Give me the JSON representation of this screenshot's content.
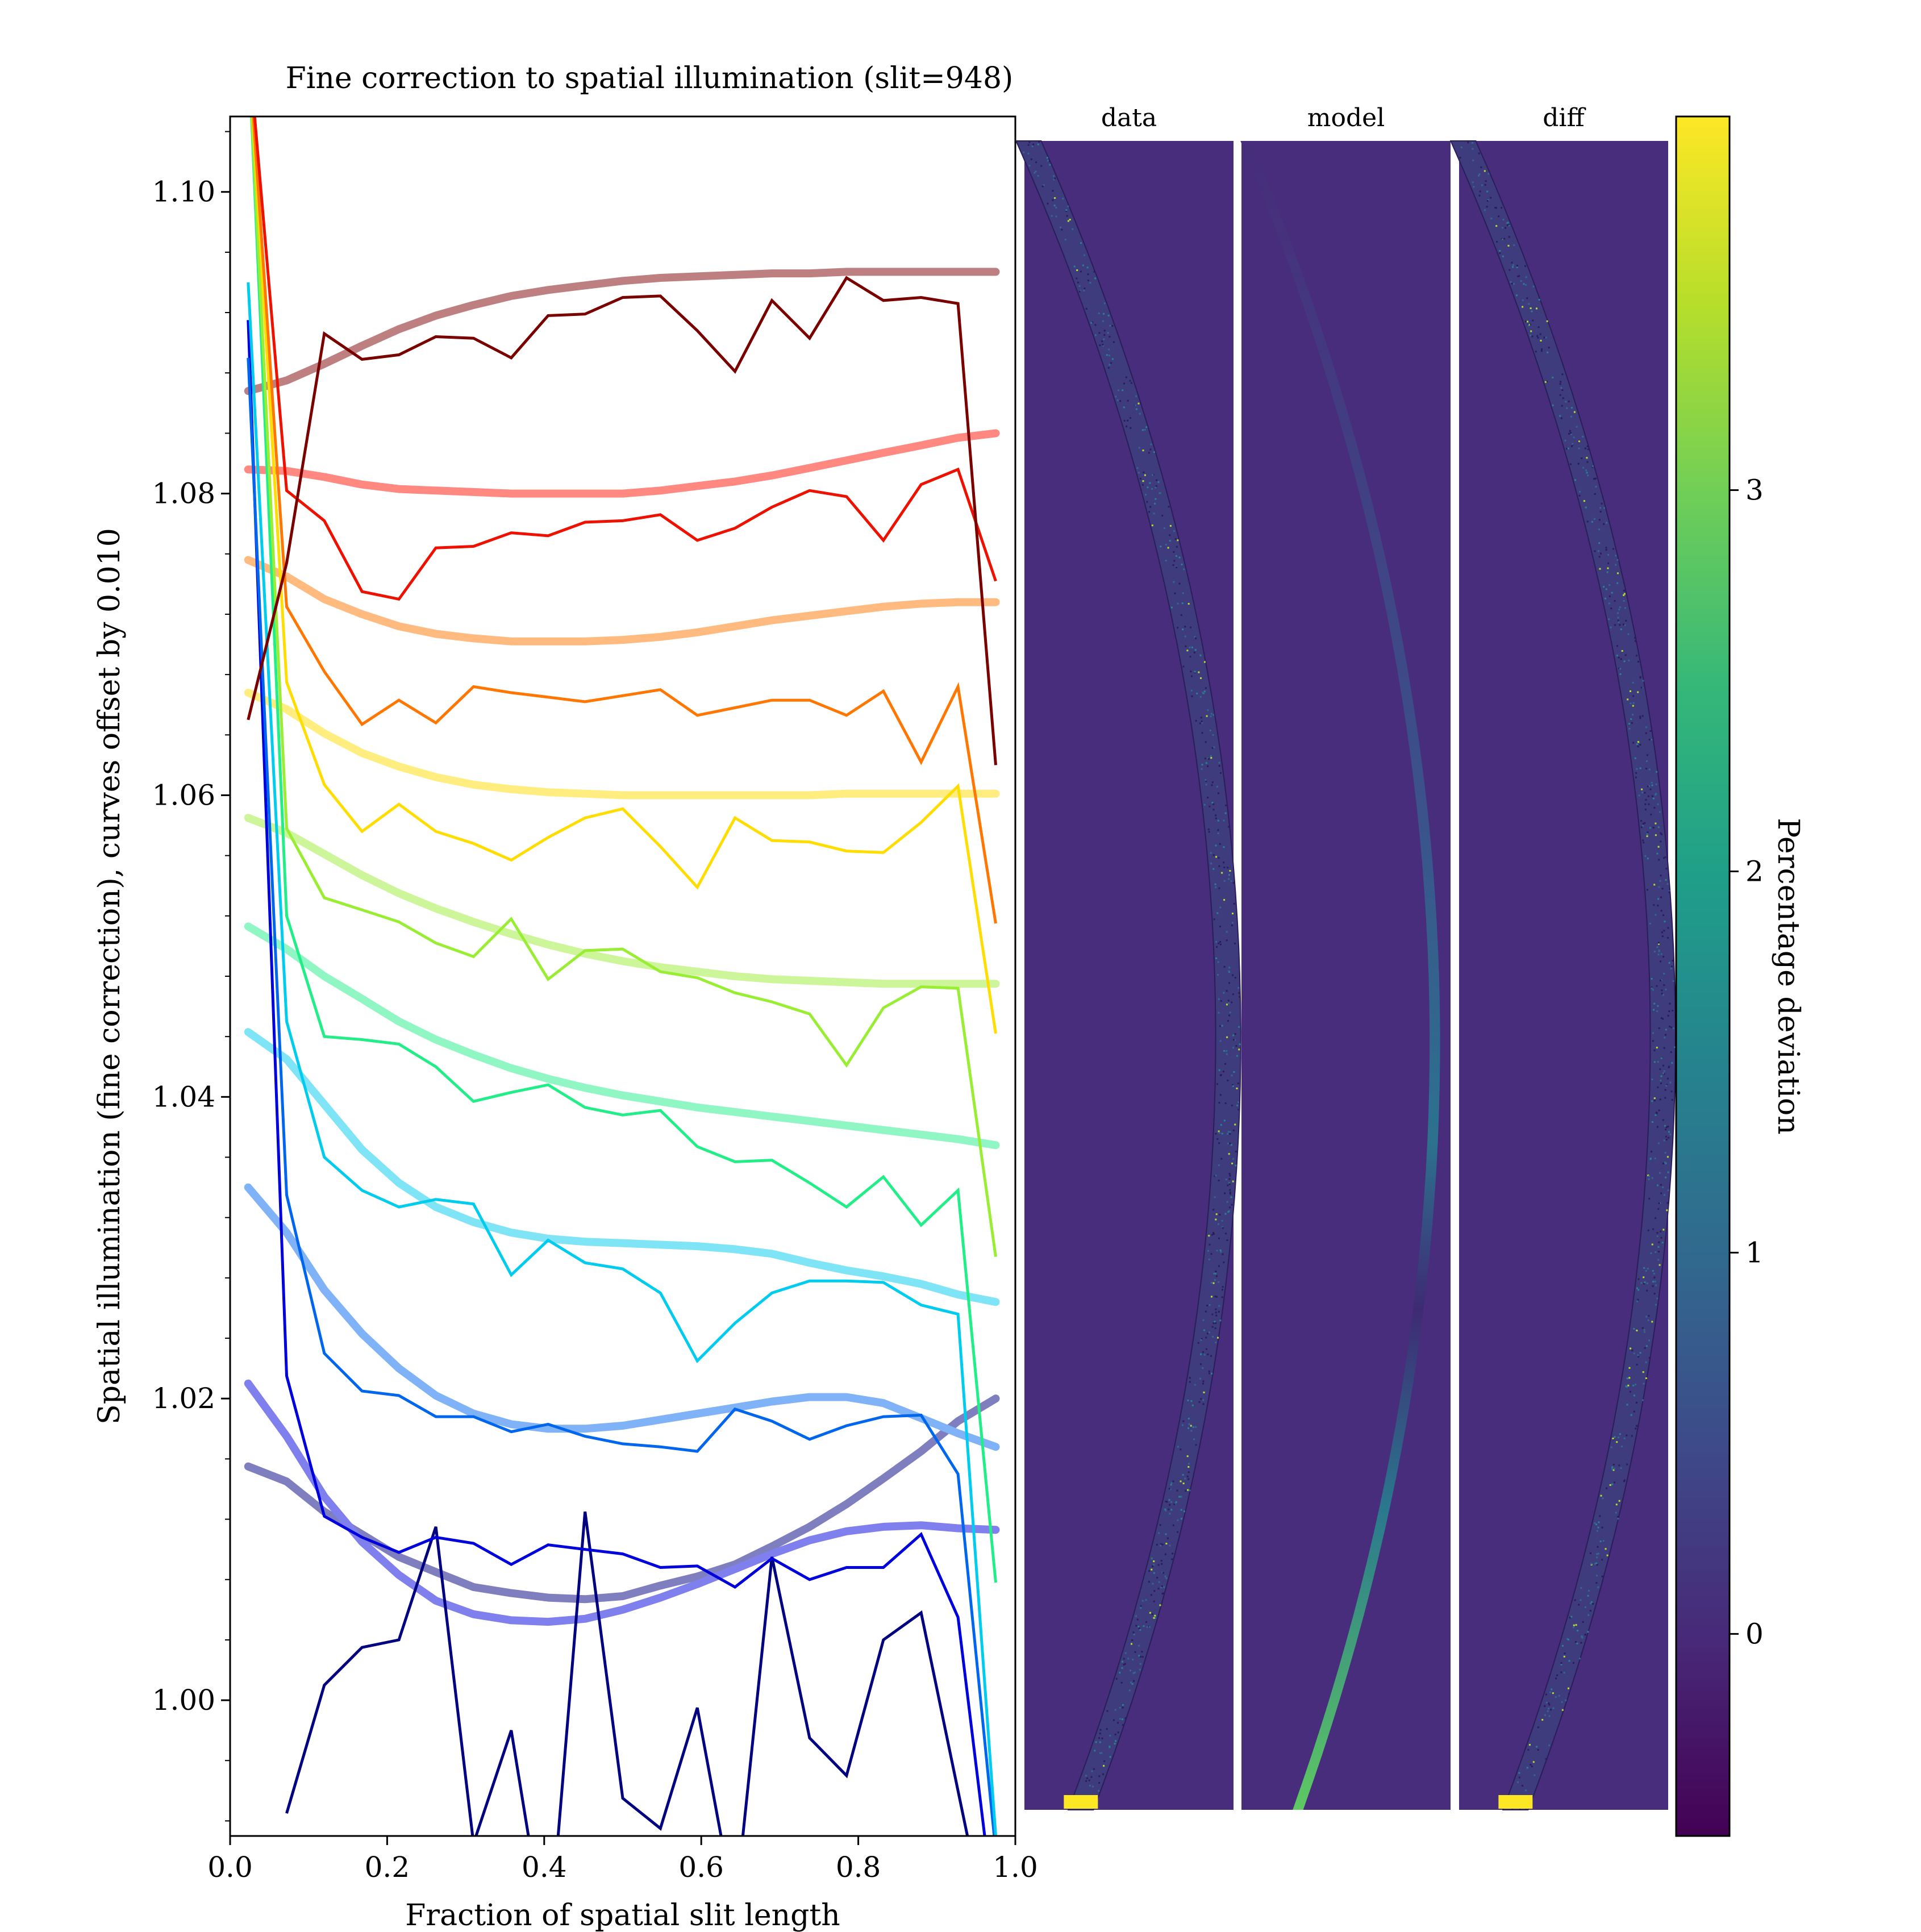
{
  "chart_data": [
    {
      "type": "line",
      "title": "Fine correction to spatial illumination (slit=948)",
      "xlabel": "Fraction of spatial slit length",
      "ylabel": "Spatial illumination (fine correction), curves offset by 0.010",
      "xlim": [
        0.0,
        1.0
      ],
      "ylim": [
        0.991,
        1.105
      ],
      "xticks": [
        "0.0",
        "0.2",
        "0.4",
        "0.6",
        "0.8",
        "1.0"
      ],
      "yticks": [
        "1.00",
        "1.02",
        "1.04",
        "1.06",
        "1.08",
        "1.10"
      ],
      "grid": false,
      "x": [
        0.023,
        0.072,
        0.12,
        0.168,
        0.215,
        0.262,
        0.31,
        0.358,
        0.405,
        0.452,
        0.5,
        0.548,
        0.595,
        0.643,
        0.69,
        0.738,
        0.785,
        0.832,
        0.88,
        0.927,
        0.975
      ],
      "series": [
        {
          "color": "#000080",
          "values": [
            null,
            0.9925,
            1.001,
            1.0035,
            1.004,
            1.0115,
            0.9905,
            0.998,
            0.983,
            1.0125,
            0.9935,
            0.9915,
            0.9995,
            0.986,
            1.0095,
            0.9975,
            0.995,
            1.004,
            1.0058,
            0.994,
            0.982
          ],
          "model": [
            1.0155,
            1.0145,
            1.0125,
            1.011,
            1.0095,
            1.0085,
            1.0075,
            1.0071,
            1.0068,
            1.0067,
            1.0069,
            1.0076,
            1.0082,
            1.009,
            1.0102,
            1.0115,
            1.013,
            1.0147,
            1.0165,
            1.0185,
            1.02
          ],
          "model_color": "#7f7fbf"
        },
        {
          "color": "#0000dd",
          "values": [
            1.0915,
            1.0215,
            1.0122,
            1.0108,
            1.0098,
            1.0108,
            1.0104,
            1.009,
            1.0103,
            1.01,
            1.0097,
            1.0088,
            1.0089,
            1.0075,
            1.0094,
            1.008,
            1.0088,
            1.0088,
            1.011,
            1.0055,
            0.985
          ],
          "model": [
            1.021,
            1.0175,
            1.0135,
            1.0105,
            1.0083,
            1.0066,
            1.0057,
            1.0053,
            1.0052,
            1.0054,
            1.006,
            1.0068,
            1.0077,
            1.0087,
            1.0097,
            1.0106,
            1.0112,
            1.0115,
            1.0116,
            1.0114,
            1.0113
          ],
          "model_color": "#7f7fee"
        },
        {
          "color": "#0066ee",
          "values": [
            1.089,
            1.0335,
            1.023,
            1.0205,
            1.0202,
            1.0188,
            1.0188,
            1.0178,
            1.0183,
            1.0175,
            1.017,
            1.0168,
            1.0165,
            1.0193,
            1.0185,
            1.0173,
            1.0182,
            1.0188,
            1.0189,
            1.015,
            0.99
          ],
          "model": [
            1.034,
            1.031,
            1.0272,
            1.0243,
            1.022,
            1.0202,
            1.019,
            1.0183,
            1.018,
            1.018,
            1.0182,
            1.0186,
            1.019,
            1.0194,
            1.0198,
            1.0201,
            1.0201,
            1.0197,
            1.0187,
            1.0177,
            1.0168
          ],
          "model_color": "#7fb2f6"
        },
        {
          "color": "#00ccee",
          "values": [
            1.094,
            1.045,
            1.036,
            1.0338,
            1.0327,
            1.0332,
            1.0329,
            1.0282,
            1.0305,
            1.029,
            1.0286,
            1.027,
            1.0225,
            1.025,
            1.027,
            1.0278,
            1.0278,
            1.0277,
            1.0262,
            1.0256,
            0.991
          ],
          "model": [
            1.0443,
            1.0425,
            1.0395,
            1.0365,
            1.0343,
            1.0327,
            1.0317,
            1.031,
            1.0306,
            1.0304,
            1.0303,
            1.0302,
            1.0301,
            1.0299,
            1.0296,
            1.029,
            1.0285,
            1.0281,
            1.0276,
            1.0269,
            1.0264
          ],
          "model_color": "#7fe5f6"
        },
        {
          "color": "#22ee88",
          "values": [
            1.11,
            1.052,
            1.044,
            1.0438,
            1.0435,
            1.042,
            1.0397,
            1.0403,
            1.0408,
            1.0393,
            1.0388,
            1.0391,
            1.0367,
            1.0357,
            1.0358,
            1.0343,
            1.0327,
            1.0347,
            1.0315,
            1.0338,
            1.0078
          ],
          "model": [
            1.0513,
            1.0498,
            1.048,
            1.0465,
            1.045,
            1.0438,
            1.0428,
            1.0419,
            1.0412,
            1.0406,
            1.0401,
            1.0397,
            1.0393,
            1.039,
            1.0387,
            1.0384,
            1.0381,
            1.0378,
            1.0375,
            1.0372,
            1.0368
          ],
          "model_color": "#90f6c3"
        },
        {
          "color": "#99ee33",
          "values": [
            1.11,
            1.0578,
            1.0532,
            1.0524,
            1.0516,
            1.0502,
            1.0493,
            1.0518,
            1.0478,
            1.0497,
            1.0498,
            1.0483,
            1.0479,
            1.0469,
            1.0463,
            1.0455,
            1.0421,
            1.0459,
            1.0473,
            1.0472,
            1.0294
          ],
          "model": [
            1.0585,
            1.0575,
            1.0561,
            1.0547,
            1.0535,
            1.0525,
            1.0516,
            1.0508,
            1.0501,
            1.0495,
            1.049,
            1.0486,
            1.0483,
            1.048,
            1.0478,
            1.0477,
            1.0476,
            1.0475,
            1.0475,
            1.0475,
            1.0475
          ],
          "model_color": "#ccf699"
        },
        {
          "color": "#ffdd00",
          "values": [
            1.11,
            1.0675,
            1.0607,
            1.0576,
            1.0594,
            1.0576,
            1.0568,
            1.0557,
            1.0572,
            1.0585,
            1.0591,
            1.0566,
            1.0539,
            1.0585,
            1.057,
            1.0569,
            1.0563,
            1.0562,
            1.0582,
            1.0606,
            1.0442
          ],
          "model": [
            1.0668,
            1.0657,
            1.0641,
            1.0628,
            1.0619,
            1.0612,
            1.0607,
            1.0604,
            1.0602,
            1.0601,
            1.06,
            1.06,
            1.06,
            1.06,
            1.06,
            1.06,
            1.0601,
            1.0601,
            1.0601,
            1.0601,
            1.0601
          ],
          "model_color": "#ffee7f"
        },
        {
          "color": "#ff7700",
          "values": [
            1.11,
            1.0725,
            1.0682,
            1.0647,
            1.0663,
            1.0648,
            1.0672,
            1.0668,
            1.0665,
            1.0662,
            1.0666,
            1.067,
            1.0653,
            1.0658,
            1.0663,
            1.0663,
            1.0653,
            1.0669,
            1.0622,
            1.0672,
            1.0515
          ],
          "model": [
            1.0756,
            1.0745,
            1.073,
            1.072,
            1.0712,
            1.0707,
            1.0704,
            1.0702,
            1.0702,
            1.0702,
            1.0703,
            1.0705,
            1.0708,
            1.0712,
            1.0716,
            1.0719,
            1.0722,
            1.0725,
            1.0727,
            1.0728,
            1.0728
          ],
          "model_color": "#ffbb7f"
        },
        {
          "color": "#ee1100",
          "values": [
            1.11,
            1.0802,
            1.0782,
            1.0735,
            1.073,
            1.0764,
            1.0765,
            1.0774,
            1.0772,
            1.0781,
            1.0782,
            1.0786,
            1.0769,
            1.0777,
            1.0791,
            1.0802,
            1.0798,
            1.0769,
            1.0806,
            1.0816,
            1.0742
          ],
          "model": [
            1.0816,
            1.0815,
            1.0811,
            1.0806,
            1.0803,
            1.0802,
            1.0801,
            1.08,
            1.08,
            1.08,
            1.08,
            1.0802,
            1.0805,
            1.0808,
            1.0812,
            1.0817,
            1.0822,
            1.0827,
            1.0832,
            1.0837,
            1.084
          ],
          "model_color": "#ff8880"
        },
        {
          "color": "#7a0000",
          "values": [
            1.065,
            1.0754,
            1.0906,
            1.0889,
            1.0892,
            1.0904,
            1.0903,
            1.089,
            1.0918,
            1.0919,
            1.093,
            1.0931,
            1.0908,
            1.0881,
            1.0928,
            1.0903,
            1.0943,
            1.0928,
            1.093,
            1.0926,
            1.062
          ],
          "model": [
            1.0868,
            1.0875,
            1.0886,
            1.0898,
            1.0909,
            1.0918,
            1.0925,
            1.0931,
            1.0935,
            1.0938,
            1.0941,
            1.0943,
            1.0944,
            1.0945,
            1.0946,
            1.0946,
            1.0947,
            1.0947,
            1.0947,
            1.0947,
            1.0947
          ],
          "model_color": "#bd7f7f"
        }
      ]
    },
    {
      "type": "heatmap",
      "panels": [
        {
          "title": "data",
          "curve_x0": 0.02,
          "curve_x_mid": 0.97,
          "curve_x1": 0.27,
          "band": 0.12
        },
        {
          "title": "model",
          "curve_x0": 0.02,
          "curve_x_mid": 0.92,
          "curve_x1": 0.27,
          "band": 0.05
        },
        {
          "title": "diff",
          "curve_x0": 0.02,
          "curve_x_mid": 0.97,
          "curve_x1": 0.27,
          "band": 0.12
        }
      ],
      "background_color": "#472d7b"
    },
    {
      "type": "colorbar",
      "label": "Percentage deviation",
      "ticks": [
        "0",
        "1",
        "2",
        "3"
      ],
      "tick_values": [
        0,
        1,
        2,
        3
      ],
      "range": [
        -0.53,
        3.98
      ],
      "colormap": [
        "#440154",
        "#482878",
        "#3e4989",
        "#31688e",
        "#26828e",
        "#1f9e89",
        "#35b779",
        "#6ece58",
        "#b5de2b",
        "#fde725"
      ]
    }
  ]
}
